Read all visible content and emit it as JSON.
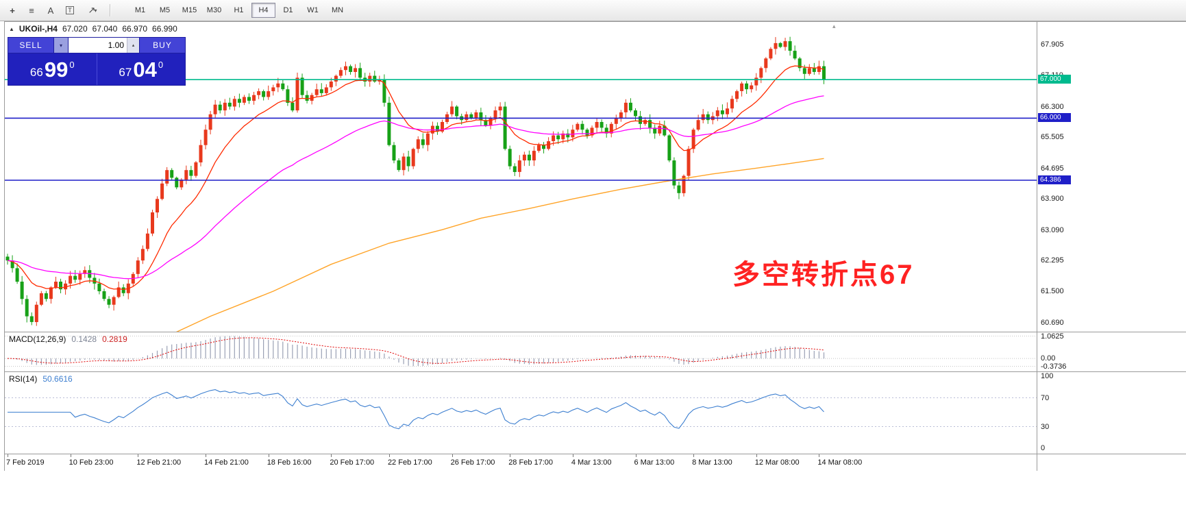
{
  "toolbar": {
    "icons": [
      {
        "name": "crosshair-icon",
        "glyph": "+"
      },
      {
        "name": "line-studies-icon",
        "glyph": "≡"
      },
      {
        "name": "text-icon",
        "glyph": "A"
      },
      {
        "name": "text-label-icon",
        "glyph": "T"
      },
      {
        "name": "arrow-tools-icon",
        "glyph": "↗"
      }
    ],
    "caret_down": "▾",
    "timeframes": [
      {
        "label": "M1"
      },
      {
        "label": "M5"
      },
      {
        "label": "M15"
      },
      {
        "label": "M30"
      },
      {
        "label": "H1"
      },
      {
        "label": "H4"
      },
      {
        "label": "D1"
      },
      {
        "label": "W1"
      },
      {
        "label": "MN"
      }
    ],
    "active_timeframe": "H4"
  },
  "chart": {
    "symbol_arrow": "▲",
    "symbol": "UKOil-,H4",
    "ohlc": {
      "open": "67.020",
      "high": "67.040",
      "low": "66.970",
      "close": "66.990"
    },
    "price_axis_labels": [
      "67.905",
      "67.110",
      "66.300",
      "65.505",
      "64.695",
      "63.900",
      "63.090",
      "62.295",
      "61.500",
      "60.690"
    ],
    "annotation": {
      "text": "多空转折点67",
      "color": "#ff2222"
    },
    "shift_marker_glyph": "▴"
  },
  "trade_panel": {
    "sell_label": "SELL",
    "buy_label": "BUY",
    "volume": "1.00",
    "caret_down": "▾",
    "caret_up": "▴",
    "sell_price": {
      "base": "66",
      "pips": "99",
      "sup": "0"
    },
    "buy_price": {
      "base": "67",
      "pips": "04",
      "sup": "0"
    }
  },
  "macd": {
    "label": "MACD(12,26,9)",
    "value_main": "0.1428",
    "value_signal": "0.2819",
    "axis": [
      {
        "text": "1.0625",
        "v": 1.0625
      },
      {
        "text": "0.00",
        "v": 0
      },
      {
        "text": "-0.3736",
        "v": -0.3736
      }
    ]
  },
  "rsi": {
    "label": "RSI(14)",
    "value": "50.6616",
    "levels": [
      70,
      30
    ],
    "axis": [
      {
        "text": "100",
        "v": 100
      },
      {
        "text": "70",
        "v": 70
      },
      {
        "text": "30",
        "v": 30
      },
      {
        "text": "0",
        "v": 0
      }
    ]
  },
  "chart_data": {
    "type": "candlestick",
    "symbol": "UKOil- H4",
    "ylim": [
      60.45,
      68.5
    ],
    "bull_color": "#e8391d",
    "bear_color": "#17a117",
    "open0": 62.4,
    "closes": [
      62.3,
      62.1,
      61.75,
      61.3,
      60.85,
      60.7,
      61.15,
      61.45,
      61.3,
      61.6,
      61.75,
      61.55,
      61.7,
      61.9,
      61.8,
      61.95,
      62.05,
      61.85,
      61.7,
      61.5,
      61.3,
      61.15,
      61.35,
      61.6,
      61.45,
      61.7,
      61.95,
      62.3,
      62.6,
      63.0,
      63.55,
      63.9,
      64.3,
      64.65,
      64.45,
      64.2,
      64.4,
      64.65,
      64.5,
      64.85,
      65.3,
      65.7,
      66.1,
      66.35,
      66.2,
      66.4,
      66.3,
      66.5,
      66.4,
      66.55,
      66.45,
      66.6,
      66.7,
      66.55,
      66.7,
      66.8,
      66.9,
      66.75,
      66.4,
      66.2,
      67.05,
      66.6,
      66.45,
      66.6,
      66.75,
      66.65,
      66.8,
      66.95,
      67.1,
      67.25,
      67.35,
      67.2,
      67.3,
      67.05,
      66.95,
      67.1,
      66.95,
      67.0,
      66.4,
      65.3,
      64.9,
      64.65,
      65.0,
      64.75,
      65.2,
      65.45,
      65.3,
      65.6,
      65.8,
      65.65,
      65.9,
      66.1,
      66.3,
      66.05,
      65.95,
      66.1,
      66.0,
      66.15,
      65.95,
      65.8,
      66.0,
      66.2,
      66.3,
      65.2,
      64.75,
      64.6,
      64.9,
      65.05,
      64.9,
      65.15,
      65.3,
      65.2,
      65.4,
      65.55,
      65.45,
      65.6,
      65.5,
      65.7,
      65.85,
      65.7,
      65.55,
      65.75,
      65.9,
      65.75,
      65.6,
      65.85,
      66.0,
      66.15,
      66.4,
      66.2,
      66.05,
      65.85,
      65.95,
      65.75,
      65.6,
      65.8,
      65.55,
      64.9,
      64.25,
      64.05,
      64.5,
      65.2,
      65.7,
      65.95,
      66.1,
      65.95,
      66.05,
      66.2,
      66.1,
      66.25,
      66.5,
      66.7,
      66.9,
      66.75,
      66.85,
      67.05,
      67.3,
      67.55,
      67.8,
      67.95,
      67.85,
      68.0,
      67.75,
      67.55,
      67.3,
      67.15,
      67.3,
      67.2,
      67.35,
      66.99
    ],
    "ma": [
      {
        "name": "fast-ma",
        "period": 13,
        "color": "#ff2a00"
      },
      {
        "name": "medium-ma",
        "period": 50,
        "color": "#ff00ff"
      }
    ],
    "slow_ma": {
      "name": "slow-ma",
      "color": "#ffa428",
      "points": [
        [
          30,
          60.15
        ],
        [
          42,
          60.85
        ],
        [
          55,
          61.5
        ],
        [
          67,
          62.2
        ],
        [
          79,
          62.75
        ],
        [
          90,
          63.1
        ],
        [
          98,
          63.4
        ],
        [
          108,
          63.65
        ],
        [
          117,
          63.9
        ],
        [
          127,
          64.15
        ],
        [
          136,
          64.35
        ],
        [
          146,
          64.55
        ],
        [
          155,
          64.7
        ],
        [
          162,
          64.82
        ],
        [
          169,
          64.95
        ]
      ]
    },
    "levels": [
      {
        "value": 67.0,
        "label": "67.000",
        "color": "#00ba8e"
      },
      {
        "value": 66.0,
        "label": "66.000",
        "color": "#1f1fc8"
      },
      {
        "value": 64.386,
        "label": "64.386",
        "color": "#1f1fc8"
      }
    ],
    "macd_colors": {
      "hist": "#9aa0b4",
      "signal": "#e00000"
    },
    "rsi_color": "#3d7fd0",
    "time_labels": [
      {
        "text": "7 Feb 2019",
        "i": 0
      },
      {
        "text": "10 Feb 23:00",
        "i": 13
      },
      {
        "text": "12 Feb 21:00",
        "i": 27
      },
      {
        "text": "14 Feb 21:00",
        "i": 41
      },
      {
        "text": "18 Feb 16:00",
        "i": 54
      },
      {
        "text": "20 Feb 17:00",
        "i": 67
      },
      {
        "text": "22 Feb 17:00",
        "i": 79
      },
      {
        "text": "26 Feb 17:00",
        "i": 92
      },
      {
        "text": "28 Feb 17:00",
        "i": 104
      },
      {
        "text": "4 Mar 13:00",
        "i": 117
      },
      {
        "text": "6 Mar 13:00",
        "i": 130
      },
      {
        "text": "8 Mar 13:00",
        "i": 142
      },
      {
        "text": "12 Mar 08:00",
        "i": 155
      },
      {
        "text": "14 Mar 08:00",
        "i": 168
      }
    ]
  }
}
